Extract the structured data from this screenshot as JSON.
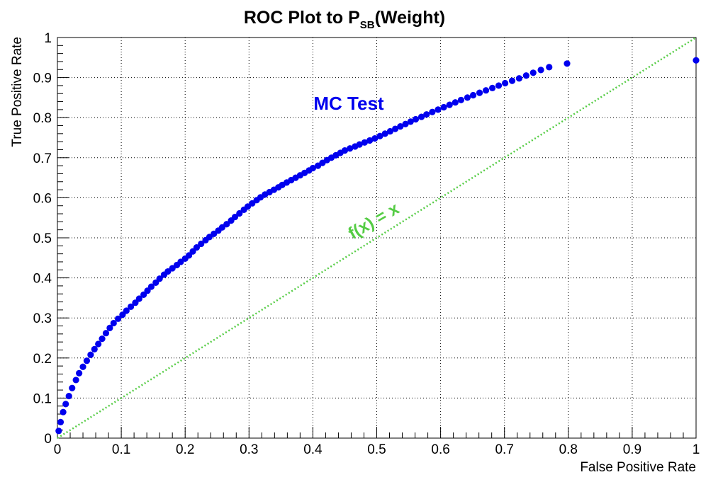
{
  "chart_data": {
    "type": "scatter",
    "title": {
      "main": "ROC Plot to P",
      "subscript": "SB",
      "tail": "(Weight)"
    },
    "xlabel": "False Positive Rate",
    "ylabel": "True Positive Rate",
    "xlim": [
      0,
      1
    ],
    "ylim": [
      0,
      1
    ],
    "xticks": [
      "0",
      "0.1",
      "0.2",
      "0.3",
      "0.4",
      "0.5",
      "0.6",
      "0.7",
      "0.8",
      "0.9",
      "1"
    ],
    "yticks": [
      "0",
      "0.1",
      "0.2",
      "0.3",
      "0.4",
      "0.5",
      "0.6",
      "0.7",
      "0.8",
      "0.9",
      "1"
    ],
    "grid": true,
    "colors": {
      "points": "#0000ee",
      "diagonal": "#55cc44"
    },
    "annotations": {
      "series_label": "MC Test",
      "diagonal_label": "f(x) = x"
    },
    "diagonal": {
      "x": [
        0,
        1
      ],
      "y": [
        0,
        1
      ]
    },
    "series": [
      {
        "x": [
          0.002,
          0.005,
          0.009,
          0.013,
          0.018,
          0.023,
          0.029,
          0.034,
          0.04,
          0.046,
          0.052,
          0.058,
          0.064,
          0.07,
          0.076,
          0.082,
          0.088,
          0.095,
          0.102,
          0.108,
          0.115,
          0.122,
          0.128,
          0.135,
          0.141,
          0.147,
          0.154,
          0.16,
          0.167,
          0.173,
          0.18,
          0.187,
          0.193,
          0.2,
          0.206,
          0.212,
          0.218,
          0.225,
          0.232,
          0.238,
          0.245,
          0.252,
          0.258,
          0.265,
          0.272,
          0.278,
          0.285,
          0.292,
          0.298,
          0.305,
          0.312,
          0.318,
          0.325,
          0.332,
          0.339,
          0.346,
          0.352,
          0.359,
          0.366,
          0.373,
          0.38,
          0.387,
          0.394,
          0.4,
          0.408,
          0.415,
          0.422,
          0.429,
          0.436,
          0.443,
          0.45,
          0.458,
          0.466,
          0.473,
          0.481,
          0.489,
          0.497,
          0.505,
          0.513,
          0.521,
          0.529,
          0.537,
          0.545,
          0.553,
          0.561,
          0.57,
          0.578,
          0.587,
          0.596,
          0.605,
          0.614,
          0.623,
          0.632,
          0.642,
          0.651,
          0.661,
          0.671,
          0.681,
          0.691,
          0.701,
          0.712,
          0.723,
          0.734,
          0.745,
          0.757,
          0.77,
          0.798,
          1.0
        ],
        "y": [
          0.018,
          0.04,
          0.065,
          0.085,
          0.105,
          0.125,
          0.145,
          0.162,
          0.178,
          0.193,
          0.208,
          0.222,
          0.235,
          0.248,
          0.262,
          0.275,
          0.287,
          0.298,
          0.308,
          0.318,
          0.328,
          0.338,
          0.348,
          0.358,
          0.368,
          0.378,
          0.388,
          0.398,
          0.408,
          0.416,
          0.424,
          0.432,
          0.44,
          0.448,
          0.456,
          0.466,
          0.476,
          0.485,
          0.494,
          0.502,
          0.51,
          0.518,
          0.526,
          0.534,
          0.543,
          0.552,
          0.561,
          0.57,
          0.578,
          0.586,
          0.594,
          0.601,
          0.608,
          0.614,
          0.62,
          0.626,
          0.632,
          0.638,
          0.644,
          0.65,
          0.656,
          0.662,
          0.668,
          0.674,
          0.68,
          0.687,
          0.694,
          0.7,
          0.706,
          0.712,
          0.718,
          0.723,
          0.728,
          0.733,
          0.738,
          0.743,
          0.748,
          0.754,
          0.76,
          0.766,
          0.772,
          0.778,
          0.784,
          0.79,
          0.796,
          0.802,
          0.808,
          0.814,
          0.82,
          0.826,
          0.832,
          0.838,
          0.844,
          0.85,
          0.856,
          0.862,
          0.868,
          0.874,
          0.88,
          0.886,
          0.892,
          0.898,
          0.905,
          0.912,
          0.919,
          0.926,
          0.935,
          0.943
        ]
      }
    ]
  }
}
